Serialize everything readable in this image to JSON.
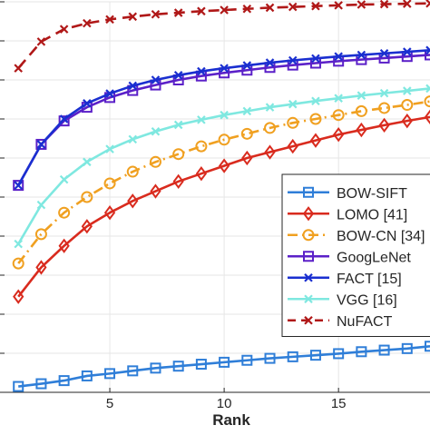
{
  "chart_data": {
    "type": "line",
    "xlabel": "Rank",
    "ylabel": "",
    "title": "",
    "xlim": [
      0,
      19
    ],
    "ylim": [
      0,
      1
    ],
    "grid": true,
    "legend_position": "right",
    "x": [
      1,
      2,
      3,
      4,
      5,
      6,
      7,
      8,
      9,
      10,
      11,
      12,
      13,
      14,
      15,
      16,
      17,
      18,
      19
    ],
    "x_ticks": [
      5,
      10,
      15
    ],
    "series": [
      {
        "name": "BOW-SIFT",
        "color": "#2f7ed8",
        "marker": "square",
        "dash": "solid",
        "values": [
          0.015,
          0.022,
          0.03,
          0.042,
          0.048,
          0.055,
          0.062,
          0.067,
          0.072,
          0.077,
          0.082,
          0.087,
          0.091,
          0.095,
          0.099,
          0.104,
          0.108,
          0.112,
          0.118
        ]
      },
      {
        "name": "LOMO [41]",
        "color": "#d92b1e",
        "marker": "diamond",
        "dash": "solid",
        "values": [
          0.245,
          0.32,
          0.375,
          0.425,
          0.46,
          0.49,
          0.515,
          0.54,
          0.56,
          0.58,
          0.6,
          0.615,
          0.63,
          0.645,
          0.66,
          0.672,
          0.684,
          0.695,
          0.705
        ]
      },
      {
        "name": "BOW-CN [34]",
        "color": "#f0a020",
        "marker": "circle",
        "dash": "dashdot",
        "values": [
          0.33,
          0.405,
          0.46,
          0.5,
          0.535,
          0.565,
          0.59,
          0.61,
          0.63,
          0.647,
          0.662,
          0.677,
          0.69,
          0.7,
          0.71,
          0.72,
          0.728,
          0.736,
          0.745
        ]
      },
      {
        "name": "GoogLeNet",
        "color": "#5b20c8",
        "marker": "square",
        "dash": "solid",
        "values": [
          0.53,
          0.635,
          0.695,
          0.73,
          0.755,
          0.773,
          0.787,
          0.8,
          0.81,
          0.818,
          0.825,
          0.832,
          0.838,
          0.843,
          0.848,
          0.852,
          0.856,
          0.86,
          0.864
        ]
      },
      {
        "name": "FACT [15]",
        "color": "#1a2fd0",
        "marker": "x",
        "dash": "solid",
        "values": [
          0.53,
          0.635,
          0.7,
          0.74,
          0.765,
          0.785,
          0.8,
          0.812,
          0.822,
          0.83,
          0.837,
          0.844,
          0.85,
          0.855,
          0.86,
          0.864,
          0.868,
          0.872,
          0.876
        ]
      },
      {
        "name": "VGG [16]",
        "color": "#7fe8e0",
        "marker": "x",
        "dash": "solid",
        "values": [
          0.38,
          0.48,
          0.545,
          0.59,
          0.623,
          0.648,
          0.668,
          0.685,
          0.698,
          0.71,
          0.72,
          0.73,
          0.738,
          0.746,
          0.753,
          0.76,
          0.766,
          0.772,
          0.778
        ]
      },
      {
        "name": "NuFACT",
        "color": "#b01818",
        "marker": "x",
        "dash": "dashed",
        "values": [
          0.83,
          0.898,
          0.93,
          0.945,
          0.955,
          0.962,
          0.968,
          0.972,
          0.976,
          0.979,
          0.982,
          0.985,
          0.987,
          0.989,
          0.991,
          0.993,
          0.994,
          0.995,
          0.996
        ]
      }
    ]
  }
}
